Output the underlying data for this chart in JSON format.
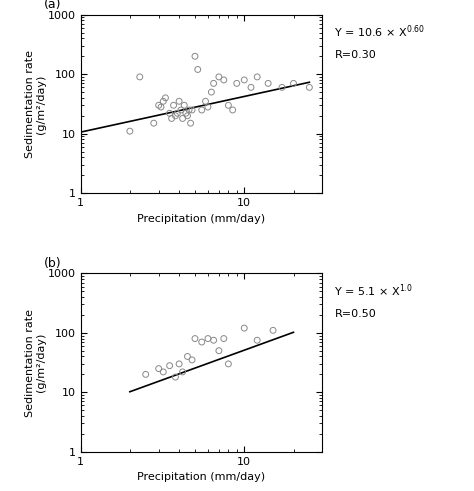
{
  "panel_a": {
    "scatter_x": [
      2.0,
      2.3,
      2.8,
      3.0,
      3.1,
      3.2,
      3.3,
      3.5,
      3.6,
      3.7,
      3.8,
      3.9,
      4.0,
      4.1,
      4.2,
      4.3,
      4.4,
      4.5,
      4.6,
      4.7,
      4.8,
      5.0,
      5.2,
      5.5,
      5.8,
      6.0,
      6.3,
      6.5,
      7.0,
      7.5,
      8.0,
      8.5,
      9.0,
      10.0,
      11.0,
      12.0,
      14.0,
      17.0,
      20.0,
      25.0
    ],
    "scatter_y": [
      11,
      90,
      15,
      30,
      28,
      35,
      40,
      22,
      18,
      30,
      20,
      22,
      35,
      25,
      18,
      30,
      22,
      20,
      25,
      15,
      25,
      200,
      120,
      25,
      35,
      28,
      50,
      70,
      90,
      80,
      30,
      25,
      70,
      80,
      60,
      90,
      70,
      60,
      70,
      60
    ],
    "line_coeff": 10.6,
    "line_exp": 0.6,
    "line_xmin": 1.0,
    "line_xmax": 25.0,
    "R_text": "R=0.30",
    "eq_coeff": "10.6",
    "eq_exp": "0.60",
    "xlim": [
      1,
      30
    ],
    "ylim": [
      1,
      1000
    ]
  },
  "panel_b": {
    "scatter_x": [
      2.5,
      3.0,
      3.2,
      3.5,
      3.8,
      4.0,
      4.2,
      4.5,
      4.8,
      5.0,
      5.5,
      6.0,
      6.5,
      7.0,
      7.5,
      8.0,
      10.0,
      12.0,
      15.0
    ],
    "scatter_y": [
      20,
      25,
      22,
      28,
      18,
      30,
      22,
      40,
      35,
      80,
      70,
      80,
      75,
      50,
      80,
      30,
      120,
      75,
      110
    ],
    "line_coeff": 5.1,
    "line_exp": 1.0,
    "line_xmin": 2.0,
    "line_xmax": 20.0,
    "R_text": "R=0.50",
    "eq_coeff": "5.1",
    "eq_exp": "1.0",
    "xlim": [
      1,
      30
    ],
    "ylim": [
      1,
      1000
    ]
  },
  "xlabel": "Precipitation (mm/day)",
  "ylabel": "Sedimentation rate\n(g/m²/day)",
  "marker_style": "o",
  "marker_size": 18,
  "marker_facecolor": "none",
  "marker_edgecolor": "#888888",
  "marker_linewidth": 0.7,
  "line_color": "black",
  "line_width": 1.2,
  "font_size": 8,
  "label_font_size": 8,
  "annotation_font_size": 8,
  "tick_labelsize": 8,
  "background_color": "white"
}
